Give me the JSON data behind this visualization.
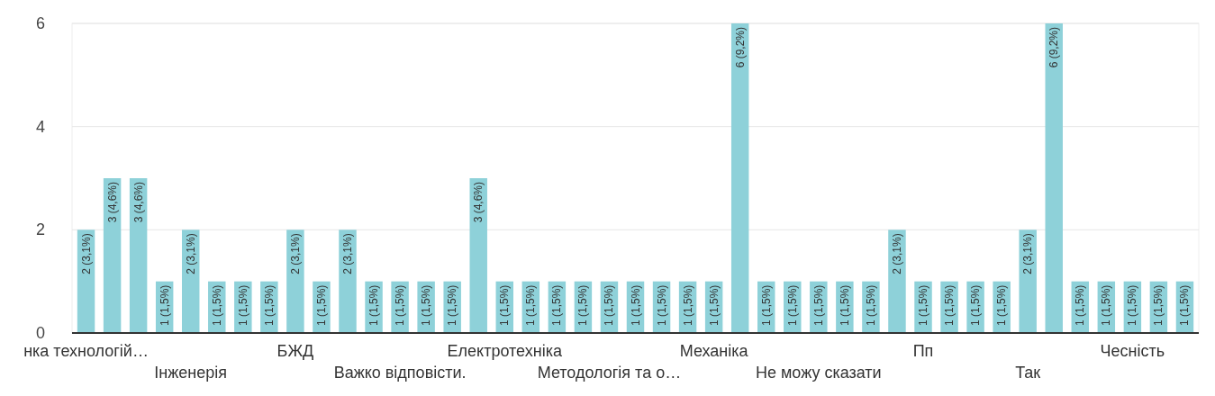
{
  "chart_data": {
    "type": "bar",
    "categories": [
      "нка технологій…",
      null,
      null,
      null,
      "Інженерія",
      null,
      null,
      null,
      "БЖД",
      null,
      null,
      null,
      "Важко відповісти.",
      null,
      null,
      null,
      "Електротехніка",
      null,
      null,
      null,
      "Методологія та о…",
      null,
      null,
      null,
      "Механіка",
      null,
      null,
      null,
      "Не можу сказати",
      null,
      null,
      null,
      "Пп",
      null,
      null,
      null,
      "Так",
      null,
      null,
      null,
      "Чесність",
      null,
      null
    ],
    "values": [
      2,
      3,
      3,
      1,
      2,
      1,
      1,
      1,
      2,
      1,
      2,
      1,
      1,
      1,
      1,
      3,
      1,
      1,
      1,
      1,
      1,
      1,
      1,
      1,
      1,
      6,
      1,
      1,
      1,
      1,
      1,
      2,
      1,
      1,
      1,
      1,
      2,
      6,
      1,
      1,
      1,
      1,
      1
    ],
    "value_labels": [
      "2 (3,1%)",
      "3 (4,6%)",
      "3 (4,6%)",
      "1 (1,5%)",
      "2 (3,1%)",
      "1 (1,5%)",
      "1 (1,5%)",
      "1 (1,5%)",
      "2 (3,1%)",
      "1 (1,5%)",
      "2 (3,1%)",
      "1 (1,5%)",
      "1 (1,5%)",
      "1 (1,5%)",
      "1 (1,5%)",
      "3 (4,6%)",
      "1 (1,5%)",
      "1 (1,5%)",
      "1 (1,5%)",
      "1 (1,5%)",
      "1 (1,5%)",
      "1 (1,5%)",
      "1 (1,5%)",
      "1 (1,5%)",
      "1 (1,5%)",
      "6 (9,2%)",
      "1 (1,5%)",
      "1 (1,5%)",
      "1 (1,5%)",
      "1 (1,5%)",
      "1 (1,5%)",
      "2 (3,1%)",
      "1 (1,5%)",
      "1 (1,5%)",
      "1 (1,5%)",
      "1 (1,5%)",
      "2 (3,1%)",
      "6 (9,2%)",
      "1 (1,5%)",
      "1 (1,5%)",
      "1 (1,5%)",
      "1 (1,5%)",
      "1 (1,5%)"
    ],
    "color": "#8ed1d9",
    "ylim": [
      0,
      6
    ],
    "yticks": [
      0,
      2,
      4,
      6
    ],
    "grid": "y"
  }
}
